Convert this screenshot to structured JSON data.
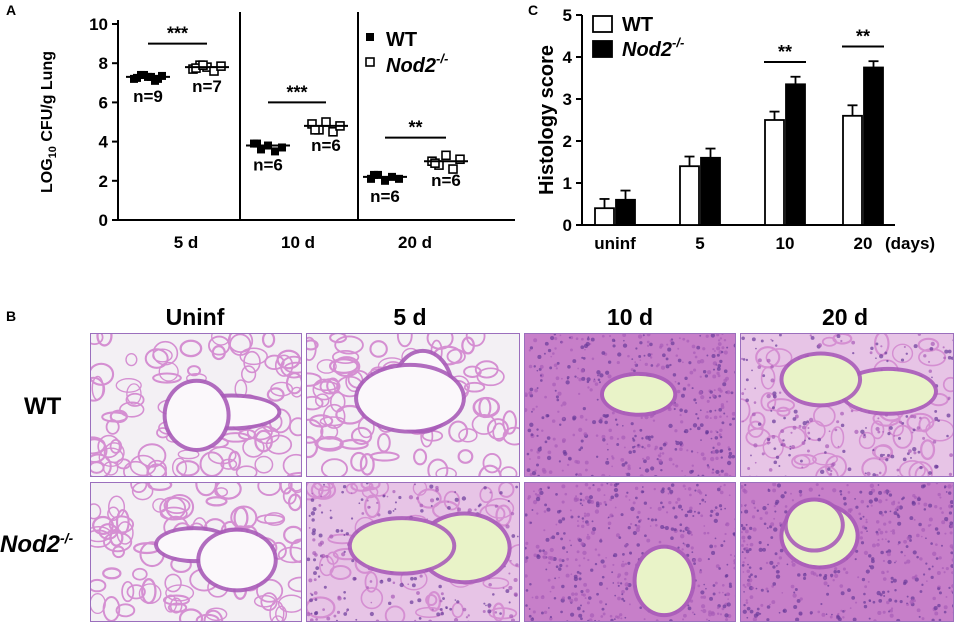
{
  "panels": {
    "a_letter": "A",
    "b_letter": "B",
    "c_letter": "C"
  },
  "colors": {
    "tissue_pink": "#d58fd2",
    "tissue_dense": "#a85cb8",
    "airspace": "#f3f0f4",
    "nucleus": "#6a3a9a",
    "wt_fill": "#ffffff",
    "nod2_fill": "#000000"
  },
  "chart_data": [
    {
      "type": "scatter",
      "panel": "A",
      "ylabel_main": "LOG",
      "ylabel_sub": "10",
      "ylabel_rest": " CFU/g Lung",
      "ylim": [
        0,
        10
      ],
      "yticks": [
        "0",
        "2",
        "4",
        "6",
        "8",
        "10"
      ],
      "categories": [
        "5 d",
        "10 d",
        "20 d"
      ],
      "legend": [
        "WT",
        "Nod2-/-"
      ],
      "legend_sup": "-/-",
      "legend_base": "Nod2",
      "series": [
        {
          "name": "WT",
          "means": [
            7.3,
            3.8,
            2.2
          ],
          "points": [
            [
              7.2,
              7.4,
              7.3,
              7.1,
              7.35,
              7.25,
              7.4,
              7.3,
              7.2
            ],
            [
              3.9,
              3.6,
              3.8,
              3.5,
              3.7,
              3.9
            ],
            [
              2.1,
              2.3,
              2.0,
              2.2,
              2.1,
              2.3
            ]
          ]
        },
        {
          "name": "Nod2-/-",
          "means": [
            7.8,
            4.8,
            3.0
          ],
          "points": [
            [
              7.7,
              7.9,
              7.8,
              7.6,
              7.85,
              7.75,
              7.9
            ],
            [
              4.9,
              4.6,
              5.0,
              4.5,
              4.8,
              4.6
            ],
            [
              3.0,
              2.8,
              3.3,
              2.6,
              3.1,
              2.9
            ]
          ]
        }
      ],
      "n_labels": [
        [
          "n=9",
          "n=7"
        ],
        [
          "n=6",
          "n=6"
        ],
        [
          "n=6",
          "n=6"
        ]
      ],
      "significance": [
        "***",
        "***",
        "**"
      ]
    },
    {
      "type": "bar",
      "panel": "C",
      "ylabel": "Histology score",
      "ylim": [
        0,
        5
      ],
      "yticks": [
        "0",
        "1",
        "2",
        "3",
        "4",
        "5"
      ],
      "categories": [
        "uninf",
        "5",
        "10",
        "20"
      ],
      "x_unit": "(days)",
      "legend": [
        "WT",
        "Nod2-/-"
      ],
      "series": [
        {
          "name": "WT",
          "values": [
            0.4,
            1.4,
            2.5,
            2.6
          ],
          "errors": [
            0.22,
            0.23,
            0.2,
            0.25
          ]
        },
        {
          "name": "Nod2-/-",
          "values": [
            0.6,
            1.6,
            3.35,
            3.75
          ],
          "errors": [
            0.22,
            0.22,
            0.18,
            0.15
          ]
        }
      ],
      "significance": [
        "",
        "",
        "**",
        "**"
      ]
    }
  ],
  "histology": {
    "columns": [
      "Uninf",
      "5 d",
      "10 d",
      "20 d"
    ],
    "rows": [
      {
        "label": "WT",
        "sup": ""
      },
      {
        "label": "Nod2",
        "sup": "-/-"
      }
    ]
  }
}
